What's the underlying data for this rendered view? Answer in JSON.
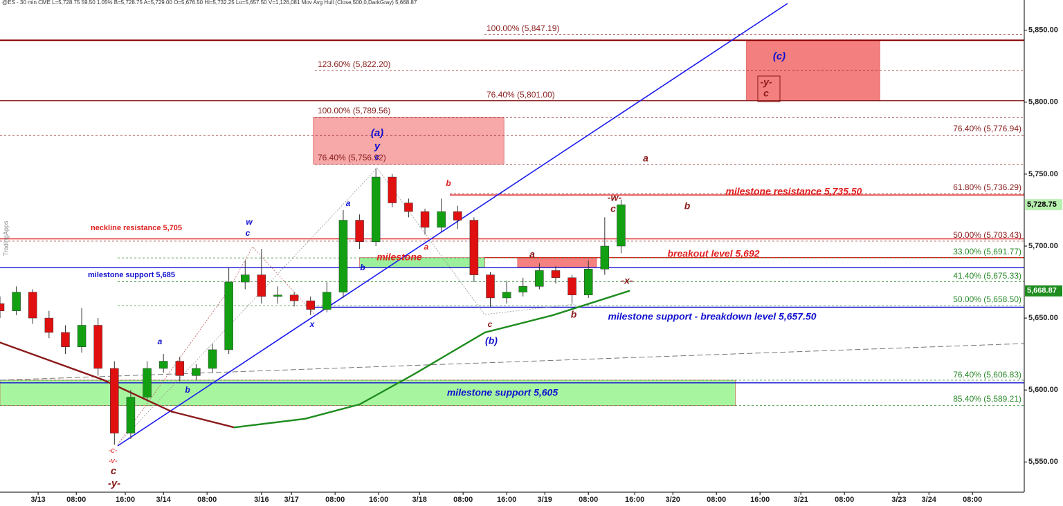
{
  "chart_data": {
    "type": "candlestick",
    "header": "@ES - 30 min  CME  L=5,728.75  59.50  1.05%  B=5,728.75  A=5,729.00  O=5,676.50  Hi=5,732.25  Lo=5,657.50  V=1,126,081  Mov Avg Hull (Close,500,0,DarkGray)  5,668.87",
    "watermark": "TradingApps",
    "up_color": "#12a012",
    "down_color": "#e01010",
    "x": [
      0,
      6,
      12,
      18,
      24,
      30,
      36,
      42,
      48,
      54,
      60,
      66,
      72,
      78,
      84,
      90,
      96,
      102,
      108,
      114,
      120,
      126,
      132,
      138,
      144,
      150,
      156,
      162,
      168,
      174,
      180,
      186,
      192,
      198,
      204,
      210,
      216,
      222,
      228
    ],
    "open": [
      5660,
      5655,
      5668,
      5650,
      5640,
      5630,
      5645,
      5615,
      5570,
      5595,
      5615,
      5620,
      5610,
      5615,
      5628,
      5675,
      5680,
      5665,
      5666,
      5662,
      5656,
      5668,
      5718,
      5703,
      5748,
      5730,
      5724,
      5713,
      5724,
      5718,
      5680,
      5664,
      5668,
      5672,
      5683,
      5678,
      5666,
      5684,
      5700
    ],
    "high": [
      5665,
      5672,
      5670,
      5655,
      5645,
      5657,
      5650,
      5620,
      5600,
      5620,
      5625,
      5623,
      5618,
      5632,
      5685,
      5690,
      5698,
      5672,
      5668,
      5665,
      5675,
      5725,
      5722,
      5754,
      5750,
      5733,
      5726,
      5733,
      5728,
      5720,
      5682,
      5676,
      5678,
      5688,
      5686,
      5680,
      5690,
      5720,
      5732.25
    ],
    "low": [
      5650,
      5652,
      5646,
      5636,
      5625,
      5626,
      5610,
      5562,
      5566,
      5592,
      5612,
      5606,
      5607,
      5612,
      5625,
      5670,
      5660,
      5660,
      5658,
      5652,
      5654,
      5664,
      5698,
      5700,
      5727,
      5720,
      5708,
      5710,
      5712,
      5675,
      5657.5,
      5660,
      5665,
      5670,
      5674,
      5660,
      5664,
      5680,
      5695
    ],
    "close": [
      5655,
      5668,
      5650,
      5640,
      5630,
      5645,
      5615,
      5570,
      5595,
      5615,
      5620,
      5610,
      5615,
      5628,
      5675,
      5680,
      5665,
      5666,
      5662,
      5656,
      5668,
      5718,
      5703,
      5748,
      5730,
      5724,
      5713,
      5724,
      5718,
      5680,
      5664,
      5668,
      5672,
      5683,
      5678,
      5666,
      5684,
      5700,
      5728.75
    ],
    "xlim": [
      0,
      376
    ],
    "ylim": [
      5529,
      5871
    ],
    "xticks": [
      {
        "value": 14,
        "label": "3/13"
      },
      {
        "value": 28,
        "label": "08:00"
      },
      {
        "value": 46,
        "label": "16:00"
      },
      {
        "value": 60,
        "label": "3/14"
      },
      {
        "value": 76,
        "label": "08:00"
      },
      {
        "value": 96,
        "label": "3/16"
      },
      {
        "value": 107,
        "label": "3/17"
      },
      {
        "value": 123,
        "label": "08:00"
      },
      {
        "value": 139,
        "label": "16:00"
      },
      {
        "value": 154,
        "label": "3/18"
      },
      {
        "value": 170,
        "label": "08:00"
      },
      {
        "value": 186,
        "label": "16:00"
      },
      {
        "value": 200,
        "label": "3/19"
      },
      {
        "value": 216,
        "label": "08:00"
      },
      {
        "value": 233,
        "label": "16:00"
      },
      {
        "value": 247,
        "label": "3/20"
      },
      {
        "value": 263,
        "label": "08:00"
      },
      {
        "value": 279,
        "label": "16:00"
      },
      {
        "value": 294,
        "label": "3/21"
      },
      {
        "value": 310,
        "label": "08:00"
      },
      {
        "value": 330,
        "label": "3/23"
      },
      {
        "value": 341,
        "label": "3/24"
      },
      {
        "value": 357,
        "label": "08:00"
      }
    ],
    "yticks": [
      {
        "value": 5550,
        "label": "5,550.00"
      },
      {
        "value": 5600,
        "label": "5,600.00"
      },
      {
        "value": 5650,
        "label": "5,650.00"
      },
      {
        "value": 5700,
        "label": "5,700.00"
      },
      {
        "value": 5750,
        "label": "5,750.00"
      },
      {
        "value": 5800,
        "label": "5,800.00"
      },
      {
        "value": 5850,
        "label": "5,850.00"
      }
    ],
    "last_price": {
      "value": 5728.75,
      "label": "5,728.75"
    },
    "ma_price": {
      "value": 5668.87,
      "label": "5,668.87"
    },
    "moving_average": {
      "x": [
        0,
        38,
        63,
        86,
        112,
        132,
        152,
        178,
        203,
        231
      ],
      "values": [
        5633,
        5607,
        5585,
        5574,
        5580,
        5590,
        5611,
        5640,
        5652,
        5668.87
      ],
      "falling_color": "#8b1a1a",
      "rising_color": "#1e8c1e"
    },
    "resistance_line": {
      "value": 5843,
      "color": "#8b0000"
    },
    "levels": [
      {
        "value": 5847.19,
        "label": "100.00% (5,847.19)",
        "color": "#8b2020"
      },
      {
        "value": 5822.2,
        "label": "123.60% (5,822.20)",
        "color": "#8b2020"
      },
      {
        "value": 5801,
        "label": "76.40% (5,801.00)",
        "color": "#8b2020"
      },
      {
        "value": 5789.56,
        "label": "100.00% (5,789.56)",
        "color": "#8b2020"
      },
      {
        "value": 5776.94,
        "label": "76.40% (5,776.94)",
        "color": "#8b2020"
      },
      {
        "value": 5756.92,
        "label": "76.40% (5,756.92)",
        "color": "#8b2020"
      },
      {
        "value": 5736.29,
        "label": "61.80% (5,736.29)",
        "color": "#8b2020"
      },
      {
        "value": 5735.5,
        "label": "milestone resistance 5,735.50",
        "color": "#e02020"
      },
      {
        "value": 5705,
        "label": "neckline resistance 5,705",
        "color": "#e02020"
      },
      {
        "value": 5703.43,
        "label": "50.00% (5,703.43)",
        "color": "#8b2020"
      },
      {
        "value": 5692,
        "label": "breakout level 5,692",
        "color": "#e02020"
      },
      {
        "value": 5691.77,
        "label": "33.00% (5,691.77)",
        "color": "#2a8a2a"
      },
      {
        "value": 5685,
        "label": "milestone support  5,685",
        "color": "#1010d0"
      },
      {
        "value": 5675.33,
        "label": "41.40% (5,675.33)",
        "color": "#2a8a2a"
      },
      {
        "value": 5658.5,
        "label": "50.00% (5,658.50)",
        "color": "#2a8a2a"
      },
      {
        "value": 5657.5,
        "label": "milestone support - breakdown level 5,657.50",
        "color": "#1010d0"
      },
      {
        "value": 5606.83,
        "label": "76.40% (5,606.83)",
        "color": "#2a8a2a"
      },
      {
        "value": 5605,
        "label": "milestone support 5,605",
        "color": "#1010d0"
      },
      {
        "value": 5589.21,
        "label": "85.40% (5,589.21)",
        "color": "#2a8a2a"
      }
    ],
    "zones": [
      {
        "low": 5756.92,
        "high": 5789.56,
        "start": 115,
        "end": 185,
        "color": "#f7a8a8"
      },
      {
        "low": 5801,
        "high": 5843,
        "start": 274,
        "end": 323,
        "color": "#f47f7f"
      },
      {
        "low": 5589.21,
        "high": 5606.83,
        "start": 0,
        "end": 270,
        "color": "#a8f5a0"
      },
      {
        "low": 5685,
        "high": 5692,
        "start": 132,
        "end": 178,
        "color": "#9cf09c"
      },
      {
        "low": 5685,
        "high": 5692,
        "start": 190,
        "end": 219,
        "color": "#f48080"
      }
    ],
    "annotations": [
      {
        "text": "a",
        "color": "#1010d0"
      },
      {
        "text": "b",
        "color": "#1010d0"
      },
      {
        "text": "w",
        "color": "#1010d0"
      },
      {
        "text": "c",
        "color": "#1010d0"
      },
      {
        "text": "x",
        "color": "#1010d0"
      },
      {
        "text": "a",
        "color": "#1010d0"
      },
      {
        "text": "b",
        "color": "#1010d0"
      },
      {
        "text": "(a)",
        "color": "#1010d0"
      },
      {
        "text": "y",
        "color": "#1010d0"
      },
      {
        "text": "c",
        "color": "#1010d0"
      },
      {
        "text": "b",
        "color": "#e02020"
      },
      {
        "text": "a",
        "color": "#e02020"
      },
      {
        "text": "c",
        "color": "#8b1a1a"
      },
      {
        "text": "(b)",
        "color": "#1010d0"
      },
      {
        "text": "a",
        "color": "#8b1a1a"
      },
      {
        "text": "b",
        "color": "#8b1a1a"
      },
      {
        "text": "-w-",
        "color": "#8b1a1a"
      },
      {
        "text": "c",
        "color": "#8b1a1a"
      },
      {
        "text": "-x-",
        "color": "#8b1a1a"
      },
      {
        "text": "a",
        "color": "#8b1a1a"
      },
      {
        "text": "b",
        "color": "#8b1a1a"
      },
      {
        "text": "(c)",
        "color": "#1010d0"
      },
      {
        "text": "-y-",
        "color": "#8b1a1a"
      },
      {
        "text": "c",
        "color": "#8b1a1a"
      },
      {
        "text": "-c-",
        "color": "#e02020"
      },
      {
        "text": "-v-",
        "color": "#e02020"
      },
      {
        "text": "c",
        "color": "#8b1a1a"
      },
      {
        "text": "-y-",
        "color": "#8b1a1a"
      },
      {
        "text": "milestone",
        "color": "#e02020"
      }
    ]
  }
}
